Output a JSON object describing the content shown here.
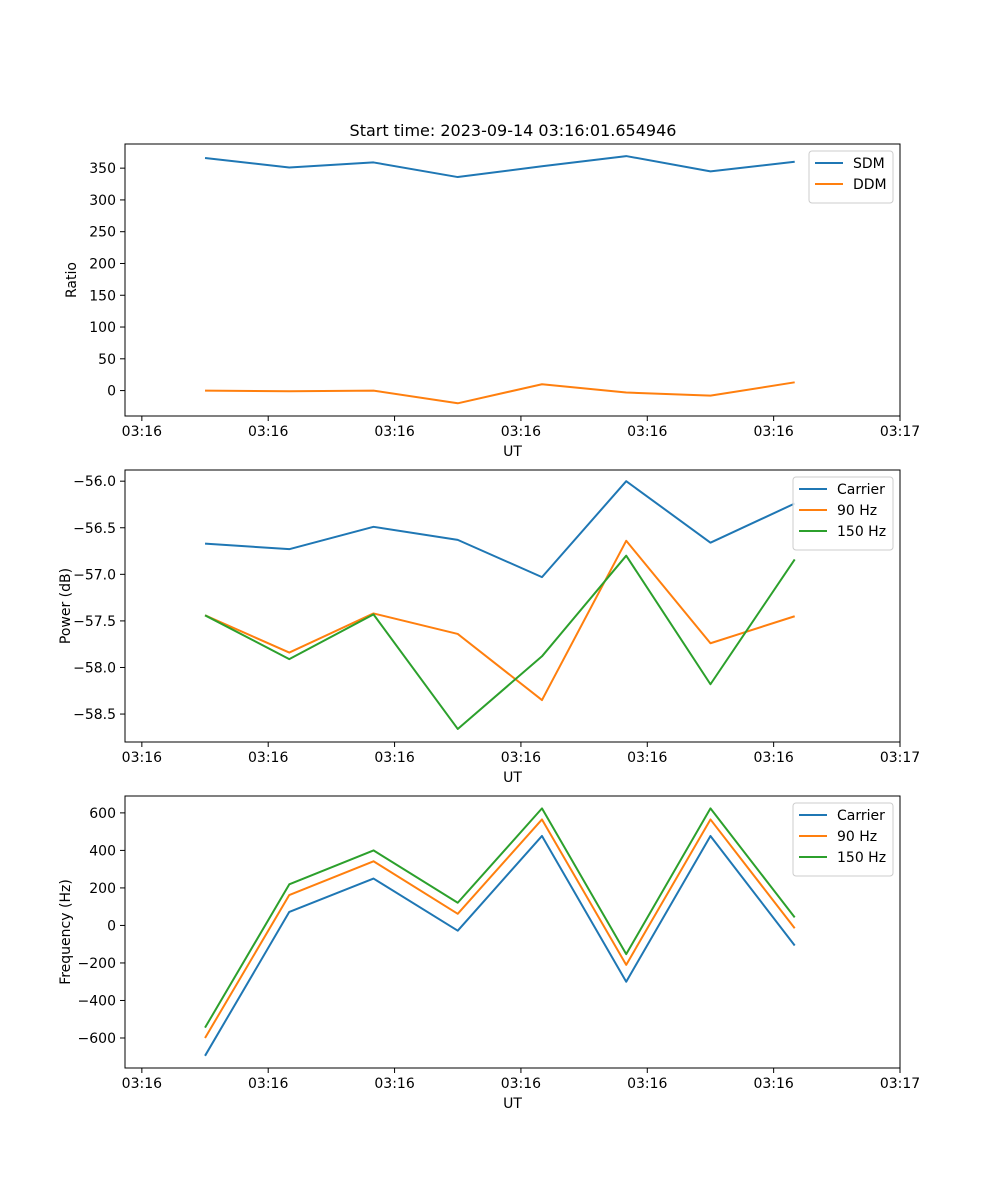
{
  "figure": {
    "title": "Start time: 2023-09-14 03:16:01.654946"
  },
  "chart_data": [
    {
      "type": "line",
      "title": "Start time: 2023-09-14 03:16:01.654946",
      "xlabel": "UT",
      "ylabel": "Ratio",
      "xlim": [
        -0.2,
        9.0
      ],
      "ylim": [
        -40,
        388
      ],
      "x": [
        0.75,
        1.75,
        2.75,
        3.75,
        4.75,
        5.75,
        6.75,
        7.75
      ],
      "xticks": [
        0,
        1.5,
        3,
        4.5,
        6,
        7.5,
        9
      ],
      "xtick_labels": [
        "03:16",
        "03:16",
        "03:16",
        "03:16",
        "03:16",
        "03:16",
        "03:17"
      ],
      "yticks": [
        0,
        50,
        100,
        150,
        200,
        250,
        300,
        350
      ],
      "ytick_labels": [
        "0",
        "50",
        "100",
        "150",
        "200",
        "250",
        "300",
        "350"
      ],
      "legend_position": "top-right",
      "series": [
        {
          "name": "SDM",
          "color": "#1f77b4",
          "values": [
            366,
            351,
            359,
            336,
            353,
            369,
            345,
            360
          ]
        },
        {
          "name": "DDM",
          "color": "#ff7f0e",
          "values": [
            0,
            -1,
            0,
            -20,
            10,
            -3,
            -8,
            13
          ]
        }
      ]
    },
    {
      "type": "line",
      "title": "",
      "xlabel": "UT",
      "ylabel": "Power (dB)",
      "xlim": [
        -0.2,
        9.0
      ],
      "ylim": [
        -58.8,
        -55.88
      ],
      "x": [
        0.75,
        1.75,
        2.75,
        3.75,
        4.75,
        5.75,
        6.75,
        7.75
      ],
      "xticks": [
        0,
        1.5,
        3,
        4.5,
        6,
        7.5,
        9
      ],
      "xtick_labels": [
        "03:16",
        "03:16",
        "03:16",
        "03:16",
        "03:16",
        "03:16",
        "03:17"
      ],
      "yticks": [
        -58.5,
        -58.0,
        -57.5,
        -57.0,
        -56.5,
        -56.0
      ],
      "ytick_labels": [
        "−58.5",
        "−58.0",
        "−57.5",
        "−57.0",
        "−56.5",
        "−56.0"
      ],
      "legend_position": "top-right",
      "series": [
        {
          "name": "Carrier",
          "color": "#1f77b4",
          "values": [
            -56.67,
            -56.73,
            -56.49,
            -56.63,
            -57.03,
            -56.0,
            -56.66,
            -56.24
          ]
        },
        {
          "name": "90 Hz",
          "color": "#ff7f0e",
          "values": [
            -57.44,
            -57.84,
            -57.42,
            -57.64,
            -58.35,
            -56.64,
            -57.74,
            -57.45
          ]
        },
        {
          "name": "150 Hz",
          "color": "#2ca02c",
          "values": [
            -57.44,
            -57.91,
            -57.43,
            -58.66,
            -57.88,
            -56.8,
            -58.18,
            -56.84
          ]
        }
      ]
    },
    {
      "type": "line",
      "title": "",
      "xlabel": "UT",
      "ylabel": "Frequency (Hz)",
      "xlim": [
        -0.2,
        9.0
      ],
      "ylim": [
        -760,
        690
      ],
      "x": [
        0.75,
        1.75,
        2.75,
        3.75,
        4.75,
        5.75,
        6.75,
        7.75
      ],
      "xticks": [
        0,
        1.5,
        3,
        4.5,
        6,
        7.5,
        9
      ],
      "xtick_labels": [
        "03:16",
        "03:16",
        "03:16",
        "03:16",
        "03:16",
        "03:16",
        "03:17"
      ],
      "yticks": [
        -600,
        -400,
        -200,
        0,
        200,
        400,
        600
      ],
      "ytick_labels": [
        "−600",
        "−400",
        "−200",
        "0",
        "200",
        "400",
        "600"
      ],
      "legend_position": "top-right",
      "series": [
        {
          "name": "Carrier",
          "color": "#1f77b4",
          "values": [
            -695,
            72,
            250,
            -28,
            477,
            -300,
            477,
            -107
          ]
        },
        {
          "name": "90 Hz",
          "color": "#ff7f0e",
          "values": [
            -600,
            162,
            342,
            62,
            565,
            -210,
            565,
            -15
          ]
        },
        {
          "name": "150 Hz",
          "color": "#2ca02c",
          "values": [
            -545,
            219,
            400,
            121,
            624,
            -153,
            624,
            43
          ]
        }
      ]
    }
  ]
}
